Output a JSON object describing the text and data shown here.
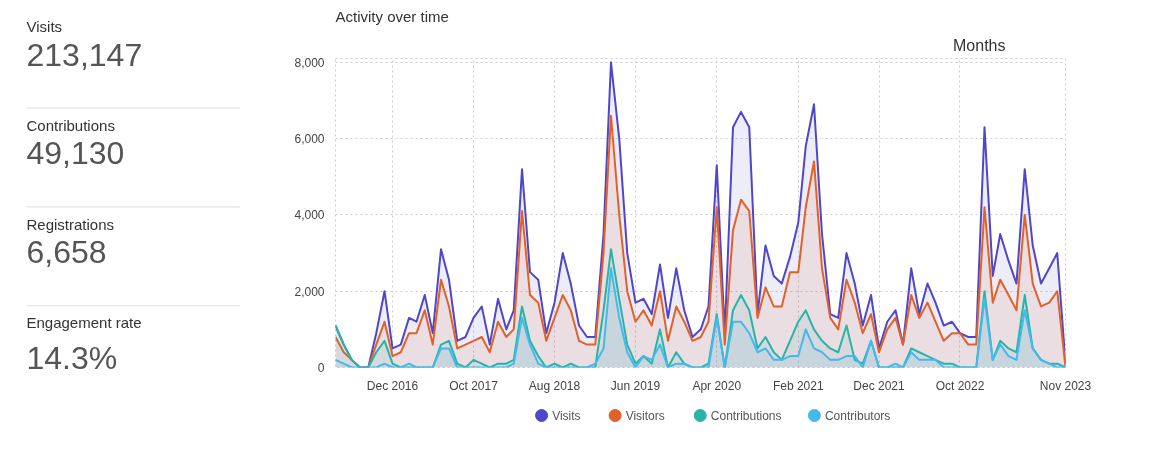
{
  "chart_data": [
    {
      "type": "other",
      "annotations": [
        "Visits",
        "213,147",
        "Contributions",
        "49,130",
        "Registrations",
        "6,658",
        "Engagement rate",
        "14.3%"
      ]
    },
    {
      "type": "area",
      "title": "Activity over time",
      "annotations": [
        "Months"
      ],
      "grid": true,
      "legend": "bottom",
      "marker": "none",
      "line_style": "solid",
      "x": [
        "2016-05",
        "2016-06",
        "2016-07",
        "2016-08",
        "2016-09",
        "2016-10",
        "2016-11",
        "2016-12",
        "2017-01",
        "2017-02",
        "2017-03",
        "2017-04",
        "2017-05",
        "2017-06",
        "2017-07",
        "2017-08",
        "2017-09",
        "2017-10",
        "2017-11",
        "2017-12",
        "2018-01",
        "2018-02",
        "2018-03",
        "2018-04",
        "2018-05",
        "2018-06",
        "2018-07",
        "2018-08",
        "2018-09",
        "2018-10",
        "2018-11",
        "2018-12",
        "2019-01",
        "2019-02",
        "2019-03",
        "2019-04",
        "2019-05",
        "2019-06",
        "2019-07",
        "2019-08",
        "2019-09",
        "2019-10",
        "2019-11",
        "2019-12",
        "2020-01",
        "2020-02",
        "2020-03",
        "2020-04",
        "2020-05",
        "2020-06",
        "2020-07",
        "2020-08",
        "2020-09",
        "2020-10",
        "2020-11",
        "2020-12",
        "2021-01",
        "2021-02",
        "2021-03",
        "2021-04",
        "2021-05",
        "2021-06",
        "2021-07",
        "2021-08",
        "2021-09",
        "2021-10",
        "2021-11",
        "2021-12",
        "2022-01",
        "2022-02",
        "2022-03",
        "2022-04",
        "2022-05",
        "2022-06",
        "2022-07",
        "2022-08",
        "2022-09",
        "2022-10",
        "2022-11",
        "2022-12",
        "2023-01",
        "2023-02",
        "2023-03",
        "2023-04",
        "2023-05",
        "2023-06",
        "2023-07",
        "2023-08",
        "2023-09",
        "2023-10",
        "2023-11"
      ],
      "xlim": [
        "2016-05",
        "2023-11"
      ],
      "xticks": [
        {
          "value": "2016-12",
          "label": "Dec 2016"
        },
        {
          "value": "2017-10",
          "label": "Oct 2017"
        },
        {
          "value": "2018-08",
          "label": "Aug 2018"
        },
        {
          "value": "2019-06",
          "label": "Jun 2019"
        },
        {
          "value": "2020-04",
          "label": "Apr 2020"
        },
        {
          "value": "2021-02",
          "label": "Feb 2021"
        },
        {
          "value": "2021-12",
          "label": "Dec 2021"
        },
        {
          "value": "2022-10",
          "label": "Oct 2022"
        },
        {
          "value": "2023-11",
          "label": "Nov 2023"
        }
      ],
      "ylim": [
        0,
        8100
      ],
      "yticks": [
        0,
        {
          "value": 2000,
          "label": "2,000"
        },
        {
          "value": 4000,
          "label": "4,000"
        },
        {
          "value": 6000,
          "label": "6,000"
        },
        {
          "value": 8000,
          "label": "8,000"
        }
      ],
      "series": [
        {
          "name": "Visits",
          "color": "#5046c8",
          "values": [
            1100,
            600,
            200,
            0,
            0,
            900,
            2000,
            500,
            600,
            1300,
            1200,
            1900,
            900,
            3100,
            2300,
            700,
            800,
            1300,
            1600,
            600,
            1800,
            1000,
            1500,
            5200,
            2500,
            2300,
            900,
            1700,
            3000,
            2200,
            1100,
            800,
            800,
            3500,
            8000,
            6000,
            3000,
            1700,
            1800,
            1400,
            2700,
            1300,
            2600,
            1500,
            800,
            1000,
            1600,
            5300,
            900,
            6300,
            6700,
            6300,
            1400,
            3200,
            2400,
            2200,
            2900,
            3800,
            5800,
            6900,
            3500,
            1400,
            1300,
            3000,
            2200,
            1100,
            1900,
            500,
            1200,
            1500,
            600,
            2600,
            1400,
            2200,
            1700,
            1100,
            1200,
            900,
            800,
            800,
            6300,
            2400,
            3500,
            2800,
            2200,
            5200,
            3200,
            2200,
            2600,
            3000,
            100
          ]
        },
        {
          "name": "Visitors",
          "color": "#e0622a",
          "values": [
            800,
            400,
            200,
            0,
            0,
            600,
            1200,
            300,
            400,
            900,
            900,
            1500,
            600,
            2300,
            1600,
            500,
            600,
            700,
            800,
            400,
            1200,
            800,
            1000,
            4100,
            1900,
            1700,
            700,
            1300,
            1900,
            1500,
            700,
            600,
            600,
            3000,
            6600,
            4000,
            2000,
            1200,
            1500,
            1100,
            2000,
            700,
            1600,
            1200,
            700,
            800,
            1200,
            4200,
            600,
            3600,
            4400,
            4100,
            1300,
            2100,
            1600,
            1600,
            2500,
            2500,
            4200,
            5400,
            2600,
            1300,
            1000,
            2300,
            1700,
            900,
            1400,
            400,
            1000,
            1300,
            600,
            1900,
            1300,
            1700,
            1200,
            700,
            900,
            900,
            600,
            600,
            4200,
            1700,
            2300,
            1900,
            1500,
            4000,
            2200,
            1600,
            1700,
            2000,
            0
          ]
        },
        {
          "name": "Contributions",
          "color": "#26b5a8",
          "values": [
            1100,
            600,
            200,
            0,
            0,
            400,
            700,
            100,
            0,
            0,
            0,
            0,
            0,
            600,
            700,
            100,
            0,
            200,
            100,
            0,
            100,
            100,
            200,
            1600,
            700,
            300,
            0,
            100,
            0,
            100,
            0,
            0,
            0,
            1500,
            3100,
            1800,
            600,
            100,
            300,
            100,
            1000,
            0,
            400,
            100,
            0,
            0,
            100,
            1400,
            0,
            1500,
            1900,
            1500,
            500,
            800,
            400,
            200,
            700,
            1200,
            1500,
            1000,
            700,
            500,
            400,
            1100,
            200,
            100,
            700,
            0,
            0,
            0,
            0,
            500,
            400,
            300,
            200,
            100,
            100,
            0,
            0,
            0,
            2000,
            200,
            700,
            500,
            400,
            1900,
            500,
            200,
            100,
            100,
            0
          ]
        },
        {
          "name": "Contributors",
          "color": "#45b8ee",
          "values": [
            200,
            100,
            0,
            0,
            0,
            0,
            100,
            0,
            0,
            100,
            0,
            0,
            0,
            500,
            500,
            0,
            0,
            0,
            0,
            0,
            0,
            0,
            100,
            1300,
            600,
            100,
            0,
            0,
            0,
            0,
            0,
            0,
            100,
            500,
            2600,
            1300,
            400,
            0,
            300,
            200,
            600,
            0,
            100,
            100,
            0,
            0,
            0,
            1300,
            0,
            1200,
            1200,
            900,
            400,
            500,
            200,
            200,
            300,
            300,
            1000,
            500,
            400,
            200,
            200,
            300,
            300,
            0,
            700,
            0,
            0,
            100,
            0,
            400,
            200,
            200,
            200,
            0,
            0,
            0,
            0,
            0,
            1800,
            200,
            600,
            300,
            200,
            1500,
            500,
            200,
            100,
            0,
            0
          ]
        }
      ]
    }
  ]
}
